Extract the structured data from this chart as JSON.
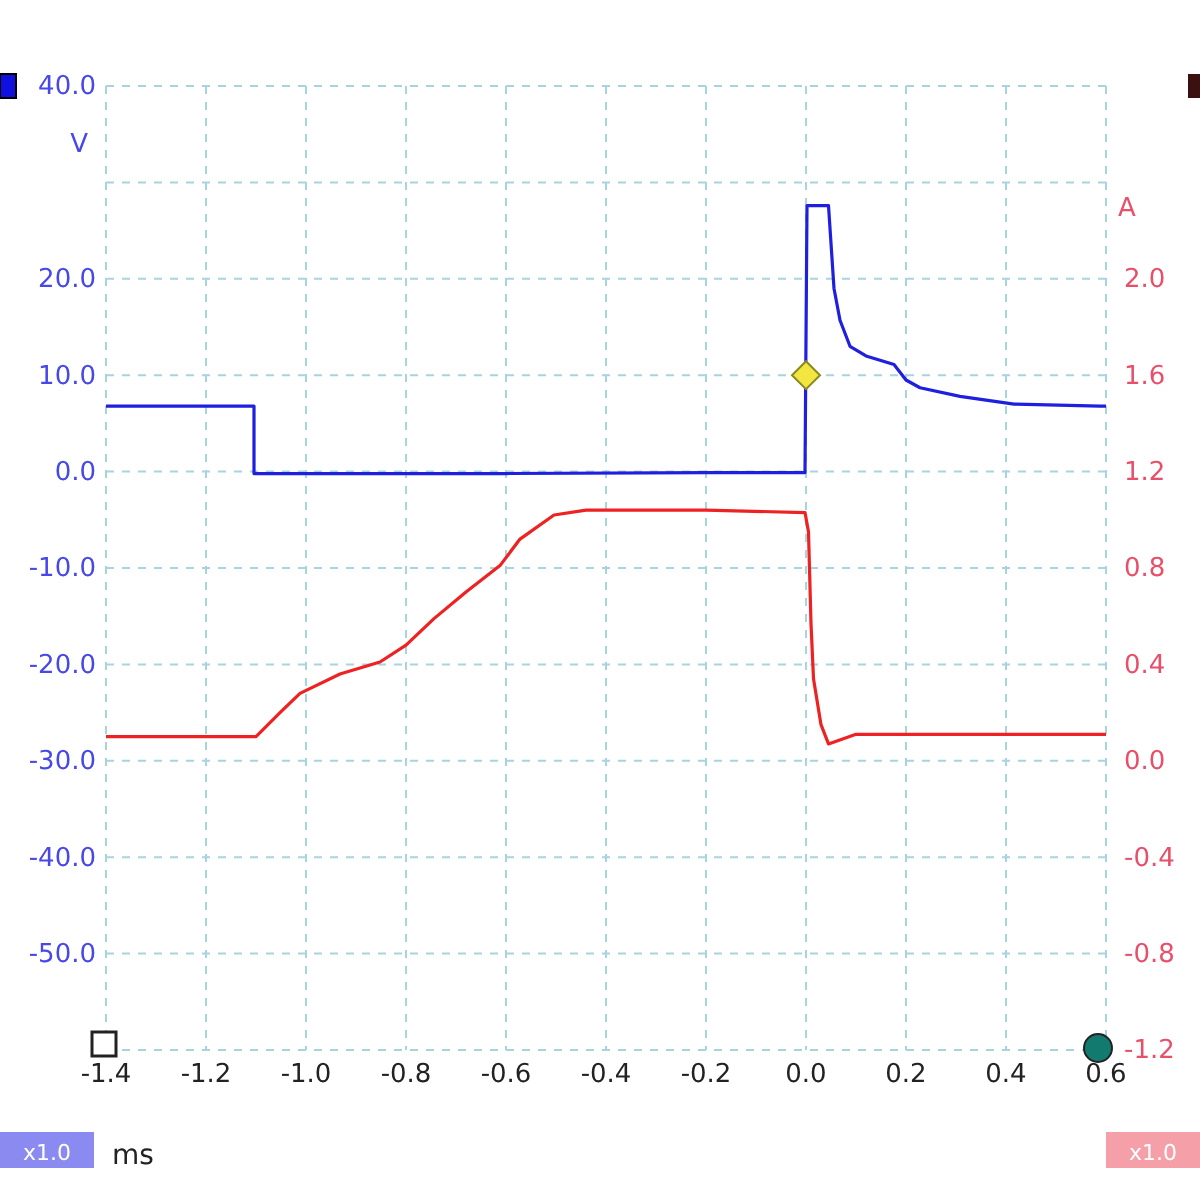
{
  "chart_data": {
    "type": "line",
    "xlabel": "ms",
    "ylabel": "V",
    "y2label": "A",
    "xlim": [
      -1.4,
      0.6
    ],
    "xticks": [
      -1.4,
      -1.2,
      {
        "value": -1,
        "label": "-1.0"
      },
      -0.8,
      -0.6,
      -0.4,
      -0.2,
      {
        "value": 0,
        "label": "0.0"
      },
      0.2,
      0.4,
      0.6
    ],
    "ylim": [
      -60,
      40
    ],
    "yticks": [
      {
        "value": -60,
        "label": null
      },
      {
        "value": -50,
        "label": "-50.0"
      },
      {
        "value": -40,
        "label": "-40.0"
      },
      {
        "value": -30,
        "label": "-30.0"
      },
      {
        "value": -20,
        "label": "-20.0"
      },
      {
        "value": -10,
        "label": "-10.0"
      },
      {
        "value": 0,
        "label": "0.0"
      },
      {
        "value": 10,
        "label": "10.0"
      },
      {
        "value": 20,
        "label": "20.0"
      },
      {
        "value": 30,
        "label": null
      },
      {
        "value": 40,
        "label": "40.0"
      }
    ],
    "y2lim": [
      -1.2,
      2.8
    ],
    "y2ticks": [
      -1.2,
      -0.8,
      -0.4,
      {
        "value": 0,
        "label": "0.0"
      },
      0.4,
      0.8,
      1.2,
      1.6,
      {
        "value": 2,
        "label": "2.0"
      }
    ],
    "grid": true,
    "line_style": "solid",
    "marker": "none",
    "annotations": [
      "x1.0",
      "x1.0"
    ],
    "series": [
      {
        "color": "#1f1fe0",
        "x": [
          -1.4,
          -1.104,
          -1.104,
          -0.6,
          -0.2,
          -0.002,
          0.002,
          0.045,
          0.056,
          0.068,
          0.088,
          0.12,
          0.176,
          0.2,
          0.228,
          0.308,
          0.416,
          0.588,
          0.6
        ],
        "values": [
          6.8,
          6.8,
          -0.2,
          -0.2,
          -0.1,
          -0.1,
          27.6,
          27.6,
          19,
          15.7,
          13,
          12,
          11.1,
          9.5,
          8.7,
          7.8,
          7.0,
          6.8,
          6.8
        ]
      },
      {
        "color": "#ee2222",
        "axis": "y2",
        "x": [
          -1.4,
          -1.25,
          -1.1,
          -1.052,
          -1.012,
          -0.932,
          -0.852,
          -0.8,
          -0.744,
          -0.68,
          -0.612,
          -0.572,
          -0.504,
          -0.44,
          -0.2,
          -0.002,
          0.005,
          0.01,
          0.015,
          0.03,
          0.045,
          0.1,
          0.3,
          0.6
        ],
        "values": [
          0.1,
          0.1,
          0.1,
          0.2,
          0.28,
          0.36,
          0.41,
          0.48,
          0.59,
          0.7,
          0.81,
          0.92,
          1.02,
          1.04,
          1.04,
          1.03,
          0.95,
          0.57,
          0.34,
          0.15,
          0.07,
          0.11,
          0.11,
          0.11
        ]
      }
    ]
  }
}
